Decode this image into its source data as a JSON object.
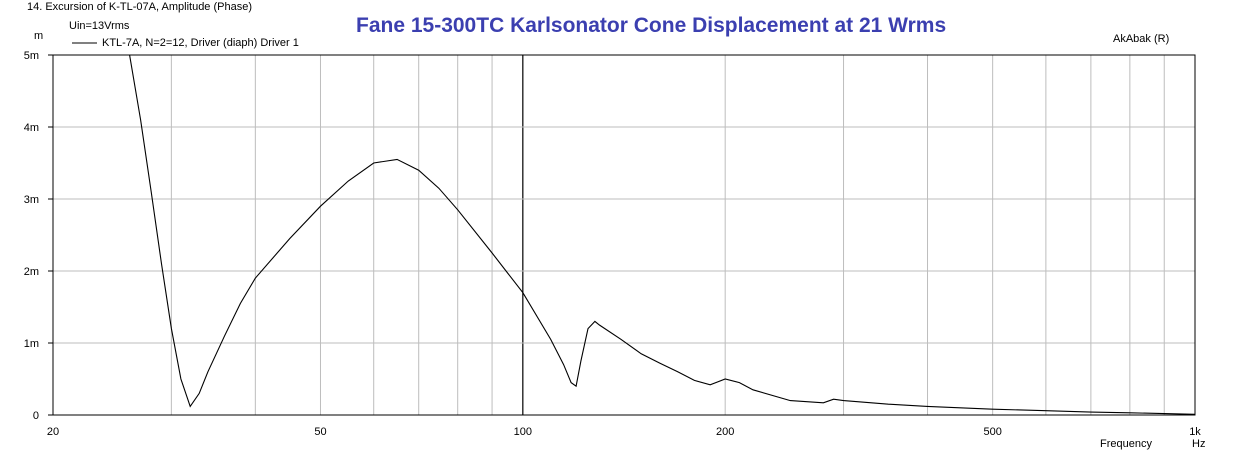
{
  "header": {
    "window_caption": "14. Excursion of K-TL-07A, Amplitude (Phase)",
    "y_unit": "m",
    "input_label": "Uin=13Vrms",
    "legend_entry": "KTL-7A, N=2=12, Driver (diaph) Driver 1",
    "brand": "AkAbak (R)"
  },
  "chart_data": {
    "type": "line",
    "title": "Fane 15-300TC Karlsonator Cone Displacement at 21 Wrms",
    "xlabel": "Frequency",
    "xunit": "Hz",
    "ylabel": "m",
    "xscale": "log",
    "xlim": [
      20,
      1000
    ],
    "ylim": [
      0,
      0.005
    ],
    "x_tick_labels": [
      "20",
      "50",
      "100",
      "200",
      "500",
      "1k"
    ],
    "y_tick_labels": [
      "5m",
      "4m",
      "3m",
      "2m",
      "1m",
      "0"
    ],
    "grid": true,
    "colors": {
      "line": "#000000",
      "grid": "#bdbdbd",
      "title": "#3b3fb0"
    },
    "series": [
      {
        "name": "KTL-7A, N=2=12, Driver (diaph) Driver 1",
        "x": [
          20,
          26,
          27,
          28,
          29,
          30,
          31,
          32,
          33,
          34,
          36,
          38,
          40,
          45,
          50,
          55,
          60,
          65,
          70,
          75,
          80,
          90,
          100,
          110,
          115,
          118,
          120,
          122,
          125,
          128,
          130,
          140,
          150,
          160,
          170,
          180,
          190,
          200,
          210,
          220,
          250,
          280,
          290,
          300,
          350,
          400,
          500,
          600,
          700,
          800,
          900,
          1000
        ],
        "y": [
          0.005,
          0.005,
          0.0041,
          0.0031,
          0.0021,
          0.0012,
          0.0005,
          0.00012,
          0.0003,
          0.0006,
          0.0011,
          0.00155,
          0.0019,
          0.00245,
          0.0029,
          0.00325,
          0.0035,
          0.00355,
          0.0034,
          0.00315,
          0.00285,
          0.00225,
          0.0017,
          0.00105,
          0.0007,
          0.00045,
          0.0004,
          0.00075,
          0.0012,
          0.0013,
          0.00125,
          0.00105,
          0.00085,
          0.00072,
          0.0006,
          0.00048,
          0.00042,
          0.0005,
          0.00045,
          0.00035,
          0.0002,
          0.00017,
          0.00022,
          0.0002,
          0.00015,
          0.00012,
          8e-05,
          6e-05,
          4e-05,
          3e-05,
          2e-05,
          1e-05
        ]
      }
    ]
  }
}
